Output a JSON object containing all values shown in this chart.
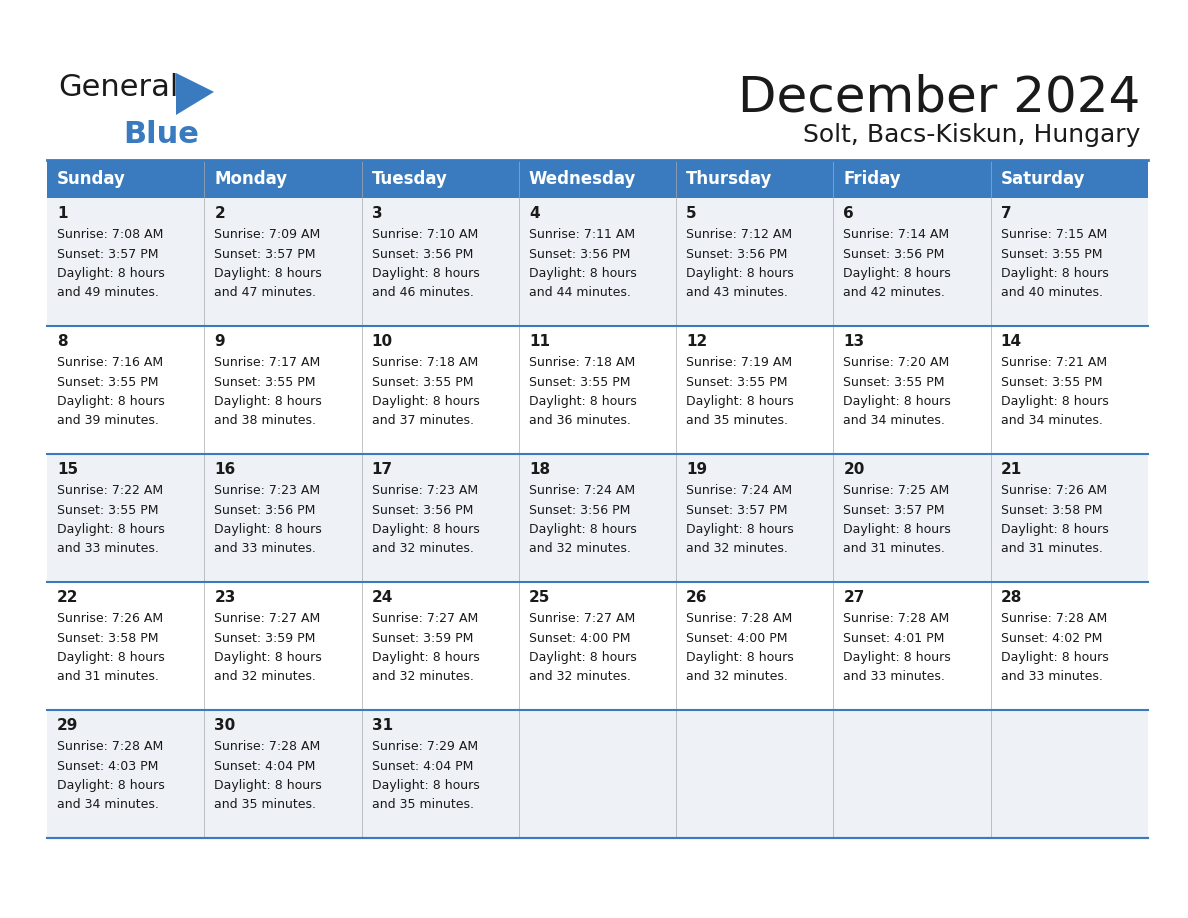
{
  "title": "December 2024",
  "subtitle": "Solt, Bacs-Kiskun, Hungary",
  "days_of_week": [
    "Sunday",
    "Monday",
    "Tuesday",
    "Wednesday",
    "Thursday",
    "Friday",
    "Saturday"
  ],
  "header_bg": "#3a7bbf",
  "header_text": "#ffffff",
  "row_bg_odd": "#eef2f7",
  "row_bg_even": "#ffffff",
  "border_color": "#3a7bbf",
  "text_color": "#1a1a1a",
  "calendar_data": [
    {
      "day": 1,
      "col": 0,
      "row": 0,
      "sunrise": "7:08 AM",
      "sunset": "3:57 PM",
      "daylight": "8 hours and 49 minutes."
    },
    {
      "day": 2,
      "col": 1,
      "row": 0,
      "sunrise": "7:09 AM",
      "sunset": "3:57 PM",
      "daylight": "8 hours and 47 minutes."
    },
    {
      "day": 3,
      "col": 2,
      "row": 0,
      "sunrise": "7:10 AM",
      "sunset": "3:56 PM",
      "daylight": "8 hours and 46 minutes."
    },
    {
      "day": 4,
      "col": 3,
      "row": 0,
      "sunrise": "7:11 AM",
      "sunset": "3:56 PM",
      "daylight": "8 hours and 44 minutes."
    },
    {
      "day": 5,
      "col": 4,
      "row": 0,
      "sunrise": "7:12 AM",
      "sunset": "3:56 PM",
      "daylight": "8 hours and 43 minutes."
    },
    {
      "day": 6,
      "col": 5,
      "row": 0,
      "sunrise": "7:14 AM",
      "sunset": "3:56 PM",
      "daylight": "8 hours and 42 minutes."
    },
    {
      "day": 7,
      "col": 6,
      "row": 0,
      "sunrise": "7:15 AM",
      "sunset": "3:55 PM",
      "daylight": "8 hours and 40 minutes."
    },
    {
      "day": 8,
      "col": 0,
      "row": 1,
      "sunrise": "7:16 AM",
      "sunset": "3:55 PM",
      "daylight": "8 hours and 39 minutes."
    },
    {
      "day": 9,
      "col": 1,
      "row": 1,
      "sunrise": "7:17 AM",
      "sunset": "3:55 PM",
      "daylight": "8 hours and 38 minutes."
    },
    {
      "day": 10,
      "col": 2,
      "row": 1,
      "sunrise": "7:18 AM",
      "sunset": "3:55 PM",
      "daylight": "8 hours and 37 minutes."
    },
    {
      "day": 11,
      "col": 3,
      "row": 1,
      "sunrise": "7:18 AM",
      "sunset": "3:55 PM",
      "daylight": "8 hours and 36 minutes."
    },
    {
      "day": 12,
      "col": 4,
      "row": 1,
      "sunrise": "7:19 AM",
      "sunset": "3:55 PM",
      "daylight": "8 hours and 35 minutes."
    },
    {
      "day": 13,
      "col": 5,
      "row": 1,
      "sunrise": "7:20 AM",
      "sunset": "3:55 PM",
      "daylight": "8 hours and 34 minutes."
    },
    {
      "day": 14,
      "col": 6,
      "row": 1,
      "sunrise": "7:21 AM",
      "sunset": "3:55 PM",
      "daylight": "8 hours and 34 minutes."
    },
    {
      "day": 15,
      "col": 0,
      "row": 2,
      "sunrise": "7:22 AM",
      "sunset": "3:55 PM",
      "daylight": "8 hours and 33 minutes."
    },
    {
      "day": 16,
      "col": 1,
      "row": 2,
      "sunrise": "7:23 AM",
      "sunset": "3:56 PM",
      "daylight": "8 hours and 33 minutes."
    },
    {
      "day": 17,
      "col": 2,
      "row": 2,
      "sunrise": "7:23 AM",
      "sunset": "3:56 PM",
      "daylight": "8 hours and 32 minutes."
    },
    {
      "day": 18,
      "col": 3,
      "row": 2,
      "sunrise": "7:24 AM",
      "sunset": "3:56 PM",
      "daylight": "8 hours and 32 minutes."
    },
    {
      "day": 19,
      "col": 4,
      "row": 2,
      "sunrise": "7:24 AM",
      "sunset": "3:57 PM",
      "daylight": "8 hours and 32 minutes."
    },
    {
      "day": 20,
      "col": 5,
      "row": 2,
      "sunrise": "7:25 AM",
      "sunset": "3:57 PM",
      "daylight": "8 hours and 31 minutes."
    },
    {
      "day": 21,
      "col": 6,
      "row": 2,
      "sunrise": "7:26 AM",
      "sunset": "3:58 PM",
      "daylight": "8 hours and 31 minutes."
    },
    {
      "day": 22,
      "col": 0,
      "row": 3,
      "sunrise": "7:26 AM",
      "sunset": "3:58 PM",
      "daylight": "8 hours and 31 minutes."
    },
    {
      "day": 23,
      "col": 1,
      "row": 3,
      "sunrise": "7:27 AM",
      "sunset": "3:59 PM",
      "daylight": "8 hours and 32 minutes."
    },
    {
      "day": 24,
      "col": 2,
      "row": 3,
      "sunrise": "7:27 AM",
      "sunset": "3:59 PM",
      "daylight": "8 hours and 32 minutes."
    },
    {
      "day": 25,
      "col": 3,
      "row": 3,
      "sunrise": "7:27 AM",
      "sunset": "4:00 PM",
      "daylight": "8 hours and 32 minutes."
    },
    {
      "day": 26,
      "col": 4,
      "row": 3,
      "sunrise": "7:28 AM",
      "sunset": "4:00 PM",
      "daylight": "8 hours and 32 minutes."
    },
    {
      "day": 27,
      "col": 5,
      "row": 3,
      "sunrise": "7:28 AM",
      "sunset": "4:01 PM",
      "daylight": "8 hours and 33 minutes."
    },
    {
      "day": 28,
      "col": 6,
      "row": 3,
      "sunrise": "7:28 AM",
      "sunset": "4:02 PM",
      "daylight": "8 hours and 33 minutes."
    },
    {
      "day": 29,
      "col": 0,
      "row": 4,
      "sunrise": "7:28 AM",
      "sunset": "4:03 PM",
      "daylight": "8 hours and 34 minutes."
    },
    {
      "day": 30,
      "col": 1,
      "row": 4,
      "sunrise": "7:28 AM",
      "sunset": "4:04 PM",
      "daylight": "8 hours and 35 minutes."
    },
    {
      "day": 31,
      "col": 2,
      "row": 4,
      "sunrise": "7:29 AM",
      "sunset": "4:04 PM",
      "daylight": "8 hours and 35 minutes."
    }
  ],
  "num_rows": 5,
  "logo_color_general": "#1a1a1a",
  "logo_color_blue": "#3a7bbf",
  "logo_triangle_color": "#3a7bbf",
  "title_fontsize": 36,
  "subtitle_fontsize": 18,
  "header_fontsize": 12,
  "day_num_fontsize": 11,
  "cell_text_fontsize": 9
}
